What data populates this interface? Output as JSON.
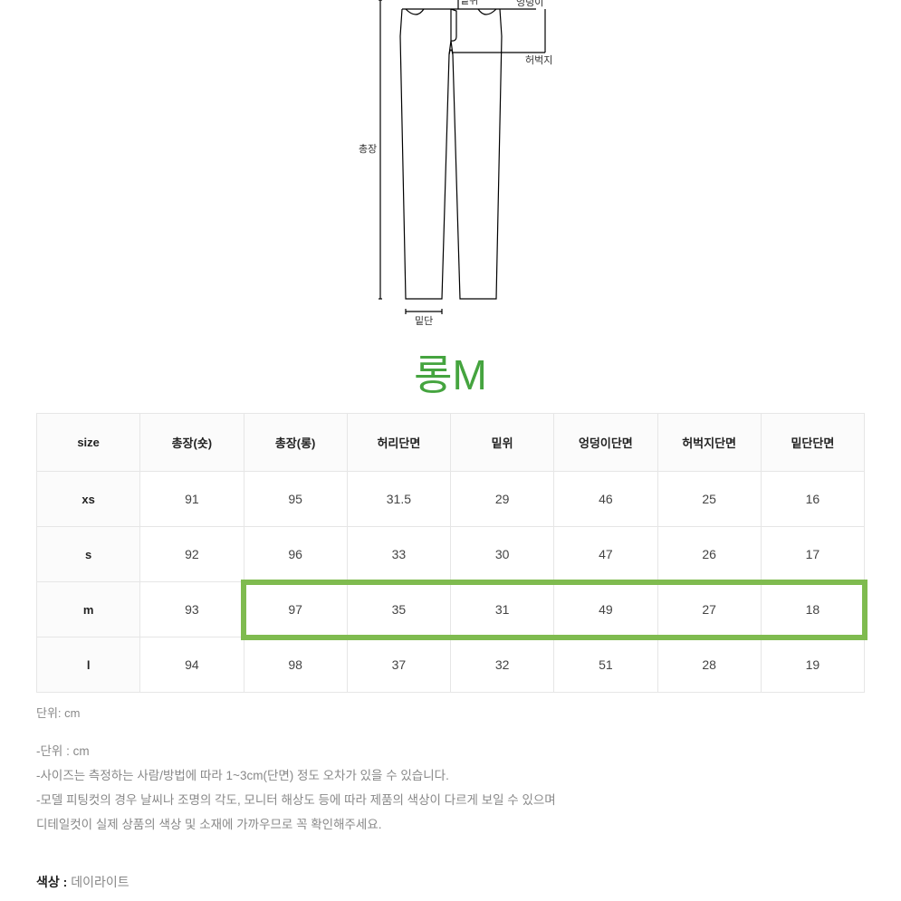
{
  "diagram": {
    "labels": {
      "rise": "밑위",
      "hip": "엉덩이",
      "thigh": "허벅지",
      "length": "총장",
      "hem": "밑단"
    },
    "stroke": "#000000",
    "stroke_width": 1.2
  },
  "title": {
    "text": "롱M",
    "color": "#45a43f",
    "fontsize": 46
  },
  "table": {
    "columns": [
      "size",
      "총장(숏)",
      "총장(롱)",
      "허리단면",
      "밑위",
      "엉덩이단면",
      "허벅지단면",
      "밑단단면"
    ],
    "rows": [
      [
        "xs",
        "91",
        "95",
        "31.5",
        "29",
        "46",
        "25",
        "16"
      ],
      [
        "s",
        "92",
        "96",
        "33",
        "30",
        "47",
        "26",
        "17"
      ],
      [
        "m",
        "93",
        "97",
        "35",
        "31",
        "49",
        "27",
        "18"
      ],
      [
        "l",
        "94",
        "98",
        "37",
        "32",
        "51",
        "28",
        "19"
      ]
    ],
    "highlight_row_index": 2,
    "highlight_col_start": 2,
    "highlight_color": "#7fbb4f",
    "border_color": "#e6e6e6",
    "header_bg": "#fbfbfb"
  },
  "unit_text": "단위: cm",
  "notes": [
    "-단위 : cm",
    "-사이즈는 측정하는 사람/방법에 따라 1~3cm(단면) 정도 오차가 있을 수 있습니다.",
    "-모델 피팅컷의 경우 날씨나 조명의 각도, 모니터 해상도 등에 따라 제품의 색상이 다르게 보일 수 있으며",
    "디테일컷이 실제 상품의 색상 및 소재에 가까우므로 꼭 확인해주세요."
  ],
  "color_section": {
    "label": "색상",
    "separator": " : ",
    "value": "데이라이트"
  }
}
